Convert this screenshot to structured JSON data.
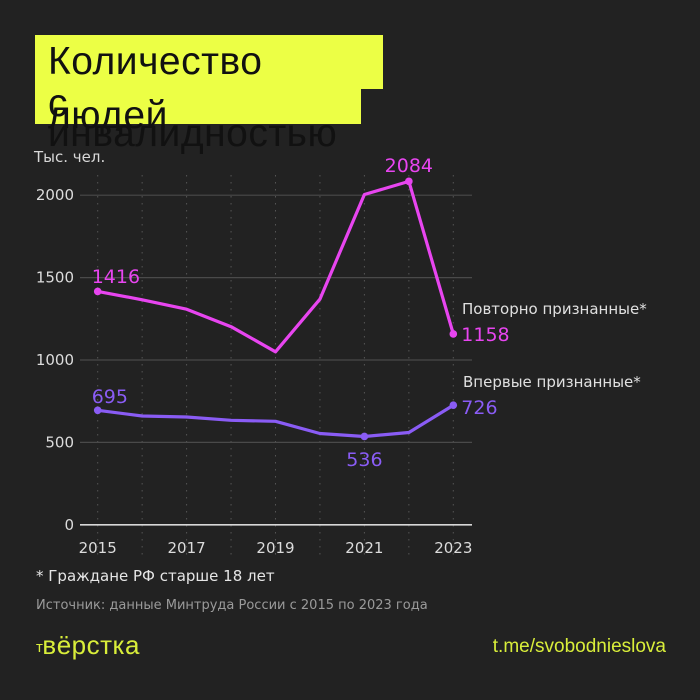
{
  "title": {
    "line1": "Количество людей",
    "line2": "с инвалидностью"
  },
  "unit_label": "Тыс. чел.",
  "footnote": "* Граждане РФ старше 18 лет",
  "source": "Источник: данные Минтруда России с 2015 по 2023 года",
  "logo": {
    "prefix": "т",
    "text": "вёрстка"
  },
  "telegram": "t.me/svobodnieslova",
  "colors": {
    "background": "#222222",
    "title_bg": "#ecff45",
    "repeat": "#e845f0",
    "first": "#8a5cf5",
    "brand": "#d9ee3a"
  },
  "chart_data": {
    "type": "line",
    "title": "Количество людей с инвалидностью",
    "xlabel": "",
    "ylabel": "Тыс. чел.",
    "x": [
      2015,
      2016,
      2017,
      2018,
      2019,
      2020,
      2021,
      2022,
      2023
    ],
    "x_tick_labels": [
      "2015",
      "2017",
      "2019",
      "2021",
      "2023"
    ],
    "y_ticks": [
      0,
      500,
      1000,
      1500,
      2000
    ],
    "ylim": [
      0,
      2100
    ],
    "grid": true,
    "series": [
      {
        "name": "Повторно признанные*",
        "color": "#e845f0",
        "values": [
          1416,
          1365,
          1308,
          1202,
          1050,
          1369,
          2004,
          2084,
          1158
        ],
        "labels": {
          "2015": "1416",
          "2022": "2084",
          "2023": "1158"
        }
      },
      {
        "name": "Впервые признанные*",
        "color": "#8a5cf5",
        "values": [
          695,
          660,
          654,
          634,
          628,
          554,
          536,
          560,
          726
        ],
        "labels": {
          "2015": "695",
          "2021": "536",
          "2023": "726"
        }
      }
    ],
    "legend_position": "inline-right",
    "annotations": [
      "* Граждане РФ старше 18 лет"
    ]
  }
}
